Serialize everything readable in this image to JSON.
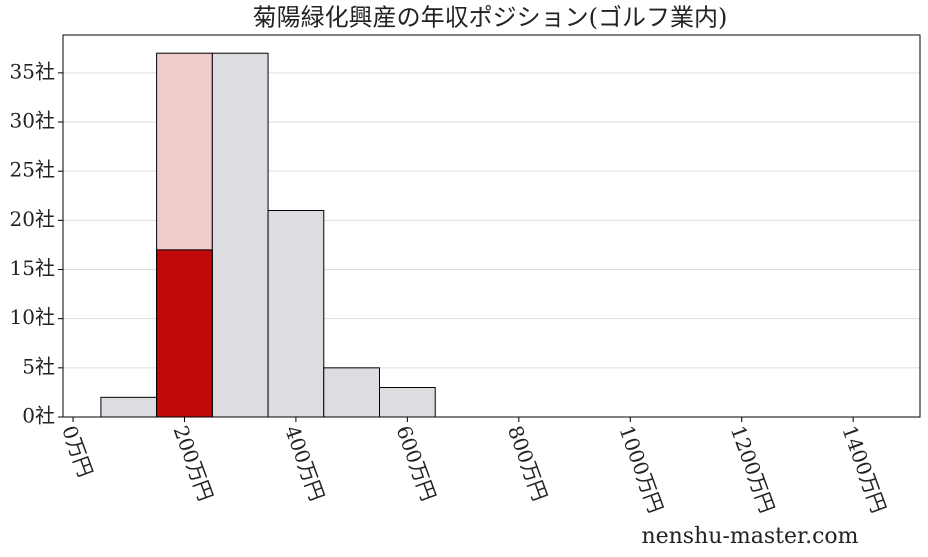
{
  "chart_data": {
    "type": "histogram",
    "title": "菊陽緑化興産の年収ポジション(ゴルフ業内)",
    "watermark": "nenshu-master.com",
    "series": [
      {
        "bins": [
          50,
          150,
          250,
          350,
          450,
          550,
          650
        ],
        "counts": [
          2,
          37,
          37,
          21,
          5,
          3
        ],
        "colors": [
          "#dcdde0",
          "#f0cccc",
          "#dcdde0",
          "#dcdde0",
          "#dcdde0",
          "#dcdde0"
        ],
        "edgecolor": "#000000"
      },
      {
        "bins": [
          150,
          250
        ],
        "counts": [
          17
        ],
        "colors": [
          "#c00a0a"
        ],
        "edgecolor": "#000000"
      }
    ],
    "xlim": [
      -18,
      1520
    ],
    "ylim": [
      0,
      38.85
    ],
    "xticks": [
      {
        "value": 0,
        "label": "0万円"
      },
      {
        "value": 200,
        "label": "200万円"
      },
      {
        "value": 400,
        "label": "400万円"
      },
      {
        "value": 600,
        "label": "600万円"
      },
      {
        "value": 800,
        "label": "800万円"
      },
      {
        "value": 1000,
        "label": "1000万円"
      },
      {
        "value": 1200,
        "label": "1200万円"
      },
      {
        "value": 1400,
        "label": "1400万円"
      }
    ],
    "yticks": [
      {
        "value": 0,
        "label": "0社"
      },
      {
        "value": 5,
        "label": "5社"
      },
      {
        "value": 10,
        "label": "10社"
      },
      {
        "value": 15,
        "label": "15社"
      },
      {
        "value": 20,
        "label": "20社"
      },
      {
        "value": 25,
        "label": "25社"
      },
      {
        "value": 30,
        "label": "30社"
      },
      {
        "value": 35,
        "label": "35社"
      }
    ],
    "grid": true
  }
}
